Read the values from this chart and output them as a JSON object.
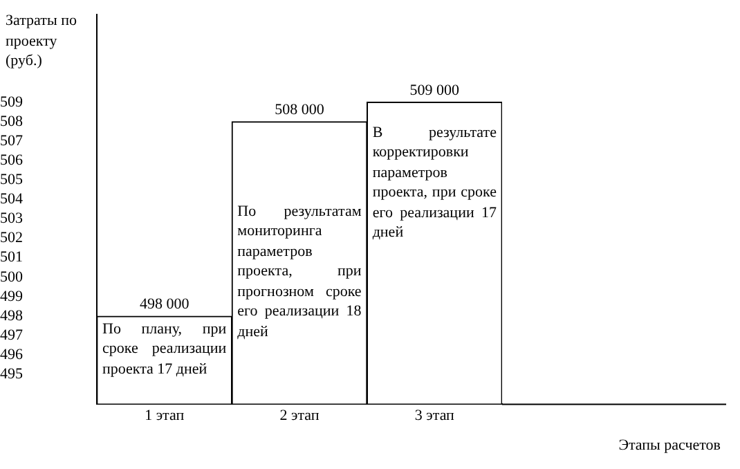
{
  "chart_data": {
    "type": "bar",
    "ylabel": "Затраты по проекту (руб.)",
    "categories": [
      "1 этап",
      "2 этап",
      "3 этап"
    ],
    "values": [
      498,
      508,
      509
    ],
    "color": "#ffffff",
    "ylim": [
      493.5,
      513.5
    ],
    "yticks": [
      495,
      496,
      497,
      498,
      499,
      500,
      501,
      502,
      503,
      504,
      505,
      506,
      507,
      508,
      509
    ],
    "grid": false,
    "legend": false,
    "annotations": [
      "По плану, при сроке реализации проекта 17 дней",
      "По результатам мониторинга параметров проекта, при прогнозном сроке его реализации 18 дней",
      "В результате корректировки параметров проекта, при сроке его реализации 17 дней",
      "Этапы расчетов",
      {
        "text": "498 000",
        "x": "1 этап",
        "y": 498
      },
      {
        "text": "508 000",
        "x": "2 этап",
        "y": 508
      },
      {
        "text": "509 000",
        "x": "3 этап",
        "y": 509
      }
    ]
  }
}
